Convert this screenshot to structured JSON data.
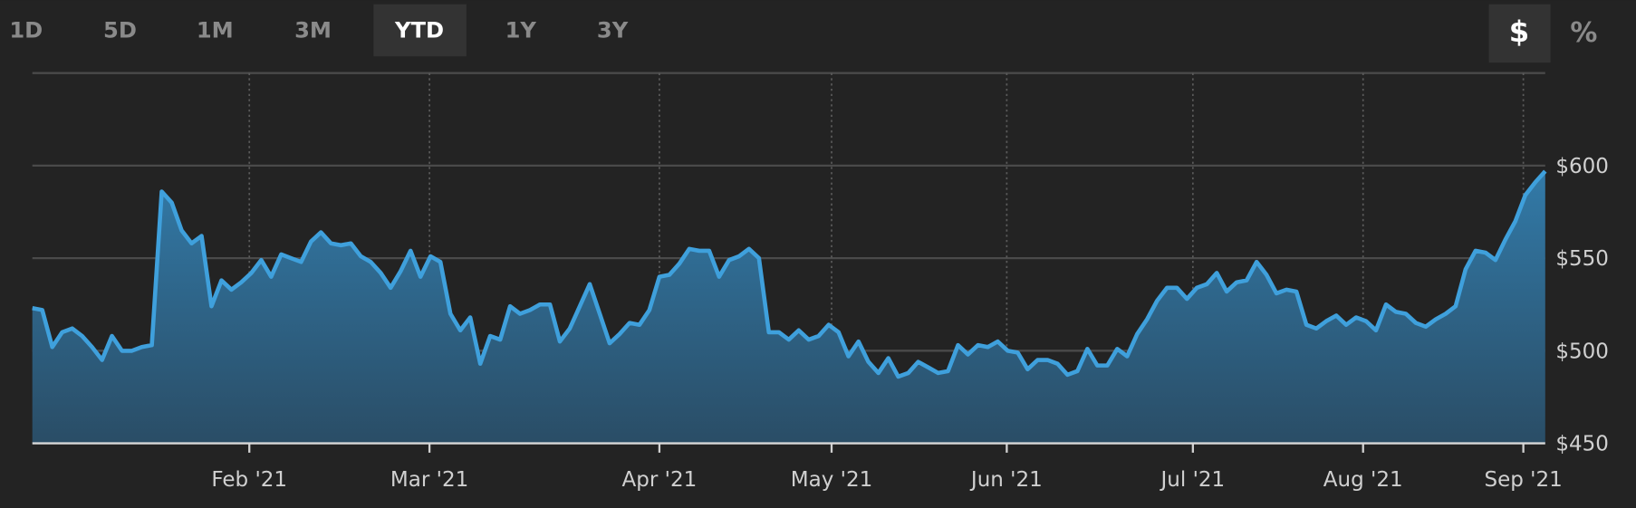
{
  "range_buttons": [
    "1D",
    "5D",
    "1M",
    "3M",
    "YTD",
    "1Y",
    "3Y"
  ],
  "unit_buttons": [
    "$",
    "%"
  ],
  "chart_data": {
    "type": "area",
    "color": "#3fa0dc",
    "values": [
      523,
      522,
      502,
      510,
      512,
      508,
      502,
      495,
      508,
      500,
      500,
      502,
      503,
      586,
      580,
      565,
      558,
      562,
      524,
      538,
      533,
      537,
      542,
      549,
      540,
      552,
      550,
      548,
      559,
      564,
      558,
      557,
      558,
      551,
      548,
      542,
      534,
      543,
      554,
      540,
      551,
      548,
      520,
      511,
      518,
      493,
      508,
      506,
      524,
      520,
      522,
      525,
      525,
      505,
      512,
      524,
      536,
      520,
      504,
      509,
      515,
      514,
      522,
      540,
      541,
      547,
      555,
      554,
      554,
      540,
      549,
      551,
      555,
      550,
      510,
      510,
      506,
      511,
      506,
      508,
      514,
      510,
      497,
      505,
      494,
      488,
      496,
      486,
      488,
      494,
      491,
      488,
      489,
      503,
      498,
      503,
      502,
      505,
      500,
      499,
      490,
      495,
      495,
      493,
      487,
      489,
      501,
      492,
      492,
      501,
      497,
      509,
      517,
      527,
      534,
      534,
      528,
      534,
      536,
      542,
      532,
      537,
      538,
      548,
      541,
      531,
      533,
      532,
      514,
      512,
      516,
      519,
      514,
      518,
      516,
      511,
      525,
      521,
      520,
      515,
      513,
      517,
      520,
      524,
      544,
      554,
      553,
      549,
      560,
      570,
      584,
      591,
      597
    ],
    "xlim": [
      0,
      152
    ],
    "xticks": [
      {
        "value": 21.8,
        "label": "Feb '21"
      },
      {
        "value": 39.9,
        "label": "Mar '21"
      },
      {
        "value": 63,
        "label": "Apr '21"
      },
      {
        "value": 80.3,
        "label": "May '21"
      },
      {
        "value": 97.9,
        "label": "Jun '21"
      },
      {
        "value": 116.6,
        "label": "Jul '21"
      },
      {
        "value": 133.7,
        "label": "Aug '21"
      },
      {
        "value": 149.8,
        "label": "Sep '21"
      }
    ],
    "ylim": [
      450,
      650
    ],
    "yticks": [
      {
        "value": 450,
        "label": "$450"
      },
      {
        "value": 500,
        "label": "$500"
      },
      {
        "value": 550,
        "label": "$550"
      },
      {
        "value": 600,
        "label": "$600"
      }
    ],
    "grid": true
  }
}
